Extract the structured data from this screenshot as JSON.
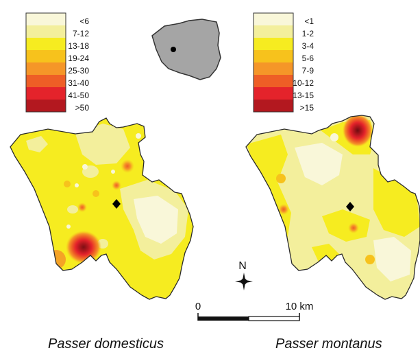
{
  "legends": [
    {
      "species": "Passer domesticus",
      "classes": [
        {
          "label": "<6",
          "color": "#f9f7d9"
        },
        {
          "label": "7-12",
          "color": "#f3ef9c"
        },
        {
          "label": "13-18",
          "color": "#f6ec20"
        },
        {
          "label": "19-24",
          "color": "#f7c21c"
        },
        {
          "label": "25-30",
          "color": "#f59628"
        },
        {
          "label": "31-40",
          "color": "#ee5e26"
        },
        {
          "label": "41-50",
          "color": "#e4232b"
        },
        {
          "label": ">50",
          "color": "#b3181f"
        }
      ]
    },
    {
      "species": "Passer montanus",
      "classes": [
        {
          "label": "<1",
          "color": "#f9f7d9"
        },
        {
          "label": "1-2",
          "color": "#f3ef9c"
        },
        {
          "label": "3-4",
          "color": "#f6ec20"
        },
        {
          "label": "5-6",
          "color": "#f7c21c"
        },
        {
          "label": "7-9",
          "color": "#f59628"
        },
        {
          "label": "10-12",
          "color": "#ee5e26"
        },
        {
          "label": "13-15",
          "color": "#e4232b"
        },
        {
          "label": ">15",
          "color": "#b3181f"
        }
      ]
    }
  ],
  "north_label": "N",
  "scale_bar": {
    "start_label": "0",
    "end_label": "10 km"
  },
  "species_labels": {
    "left": "Passer domesticus",
    "right": "Passer montanus"
  },
  "icons": [
    "north-arrow-icon",
    "city-centre-diamond-icon",
    "location-dot-icon"
  ]
}
